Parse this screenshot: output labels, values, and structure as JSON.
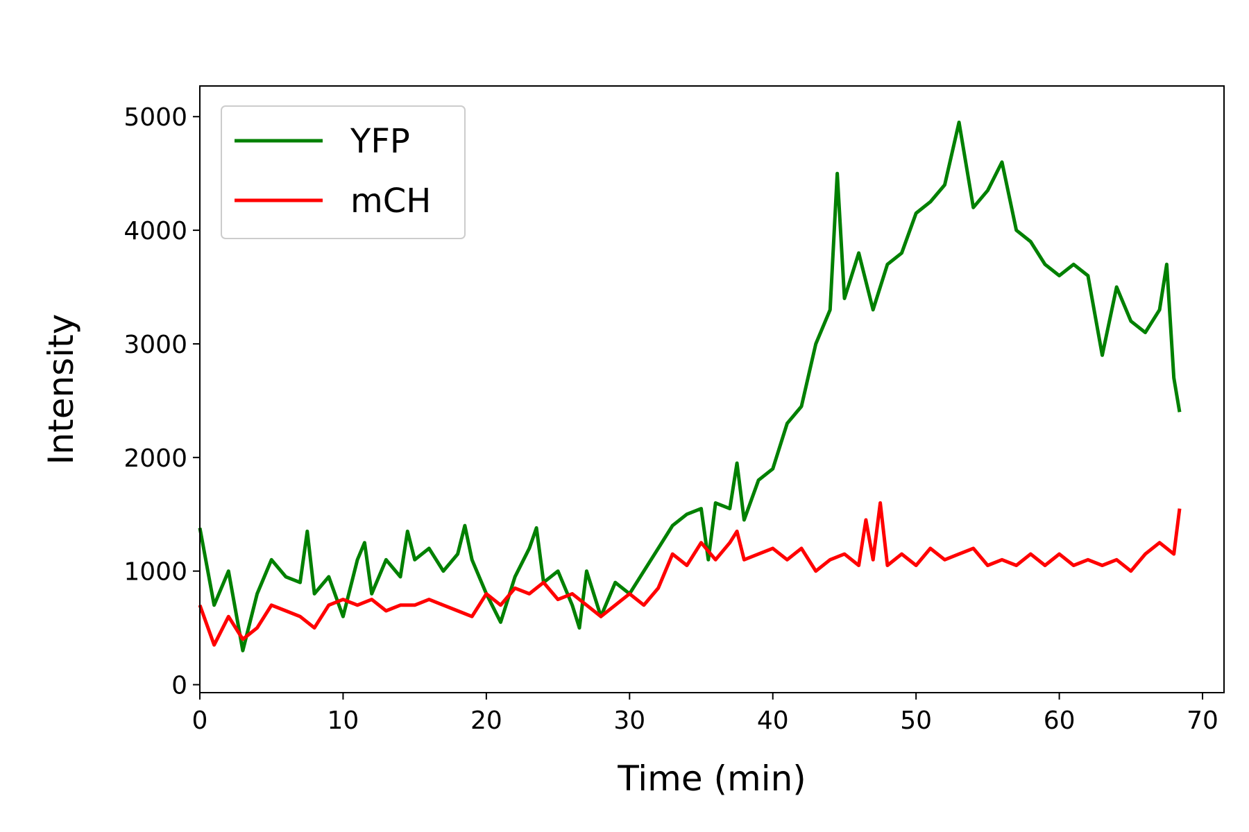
{
  "chart_data": {
    "type": "line",
    "title": "",
    "xlabel": "Time (min)",
    "ylabel": "Intensity",
    "xlim": [
      0,
      71.5
    ],
    "ylim": [
      -70,
      5270
    ],
    "xticks": [
      0,
      10,
      20,
      30,
      40,
      50,
      60,
      70
    ],
    "yticks": [
      0,
      1000,
      2000,
      3000,
      4000,
      5000
    ],
    "grid": false,
    "legend": "top-left",
    "series": [
      {
        "name": "YFP",
        "color": "#008000",
        "x": [
          0,
          1,
          2,
          3,
          4,
          5,
          6,
          7,
          7.5,
          8,
          9,
          10,
          11,
          11.5,
          12,
          13,
          14,
          14.5,
          15,
          16,
          17,
          18,
          18.5,
          19,
          20,
          21,
          22,
          23,
          23.5,
          24,
          25,
          26,
          26.5,
          27,
          28,
          29,
          30,
          31,
          32,
          33,
          34,
          35,
          35.5,
          36,
          37,
          37.5,
          38,
          39,
          40,
          41,
          42,
          43,
          44,
          44.5,
          45,
          46,
          47,
          48,
          49,
          50,
          51,
          52,
          53,
          54,
          55,
          56,
          57,
          58,
          59,
          60,
          61,
          62,
          63,
          64,
          65,
          66,
          67,
          67.5,
          68,
          68.4
        ],
        "values": [
          1380,
          700,
          1000,
          300,
          800,
          1100,
          950,
          900,
          1350,
          800,
          950,
          600,
          1100,
          1250,
          800,
          1100,
          950,
          1350,
          1100,
          1200,
          1000,
          1150,
          1400,
          1100,
          800,
          550,
          950,
          1200,
          1380,
          900,
          1000,
          700,
          500,
          1000,
          600,
          900,
          800,
          1000,
          1200,
          1400,
          1500,
          1550,
          1100,
          1600,
          1550,
          1950,
          1450,
          1800,
          1900,
          2300,
          2450,
          3000,
          3300,
          4500,
          3400,
          3800,
          3300,
          3700,
          3800,
          4150,
          4250,
          4400,
          4950,
          4200,
          4350,
          4600,
          4000,
          3900,
          3700,
          3600,
          3700,
          3600,
          2900,
          3500,
          3200,
          3100,
          3300,
          3700,
          2700,
          2400
        ],
        "extent": "0 to 68.4 min"
      },
      {
        "name": "mCH",
        "color": "#ff0000",
        "x": [
          0,
          1,
          2,
          3,
          4,
          5,
          6,
          7,
          8,
          9,
          10,
          11,
          12,
          13,
          14,
          15,
          16,
          17,
          18,
          19,
          20,
          21,
          22,
          23,
          24,
          25,
          26,
          27,
          28,
          29,
          30,
          31,
          32,
          33,
          34,
          35,
          36,
          37,
          37.5,
          38,
          39,
          40,
          41,
          42,
          43,
          44,
          45,
          46,
          46.5,
          47,
          47.5,
          48,
          49,
          50,
          51,
          52,
          53,
          54,
          55,
          56,
          57,
          58,
          59,
          60,
          61,
          62,
          63,
          64,
          65,
          66,
          67,
          68,
          68.4
        ],
        "values": [
          700,
          350,
          600,
          400,
          500,
          700,
          650,
          600,
          500,
          700,
          750,
          700,
          750,
          650,
          700,
          700,
          750,
          700,
          650,
          600,
          800,
          700,
          850,
          800,
          900,
          750,
          800,
          700,
          600,
          700,
          800,
          700,
          850,
          1150,
          1050,
          1250,
          1100,
          1250,
          1350,
          1100,
          1150,
          1200,
          1100,
          1200,
          1000,
          1100,
          1150,
          1050,
          1450,
          1100,
          1600,
          1050,
          1150,
          1050,
          1200,
          1100,
          1150,
          1200,
          1050,
          1100,
          1050,
          1150,
          1050,
          1150,
          1050,
          1100,
          1050,
          1100,
          1000,
          1150,
          1250,
          1150,
          1550
        ],
        "extent": "0 to 68.4 min"
      }
    ]
  }
}
